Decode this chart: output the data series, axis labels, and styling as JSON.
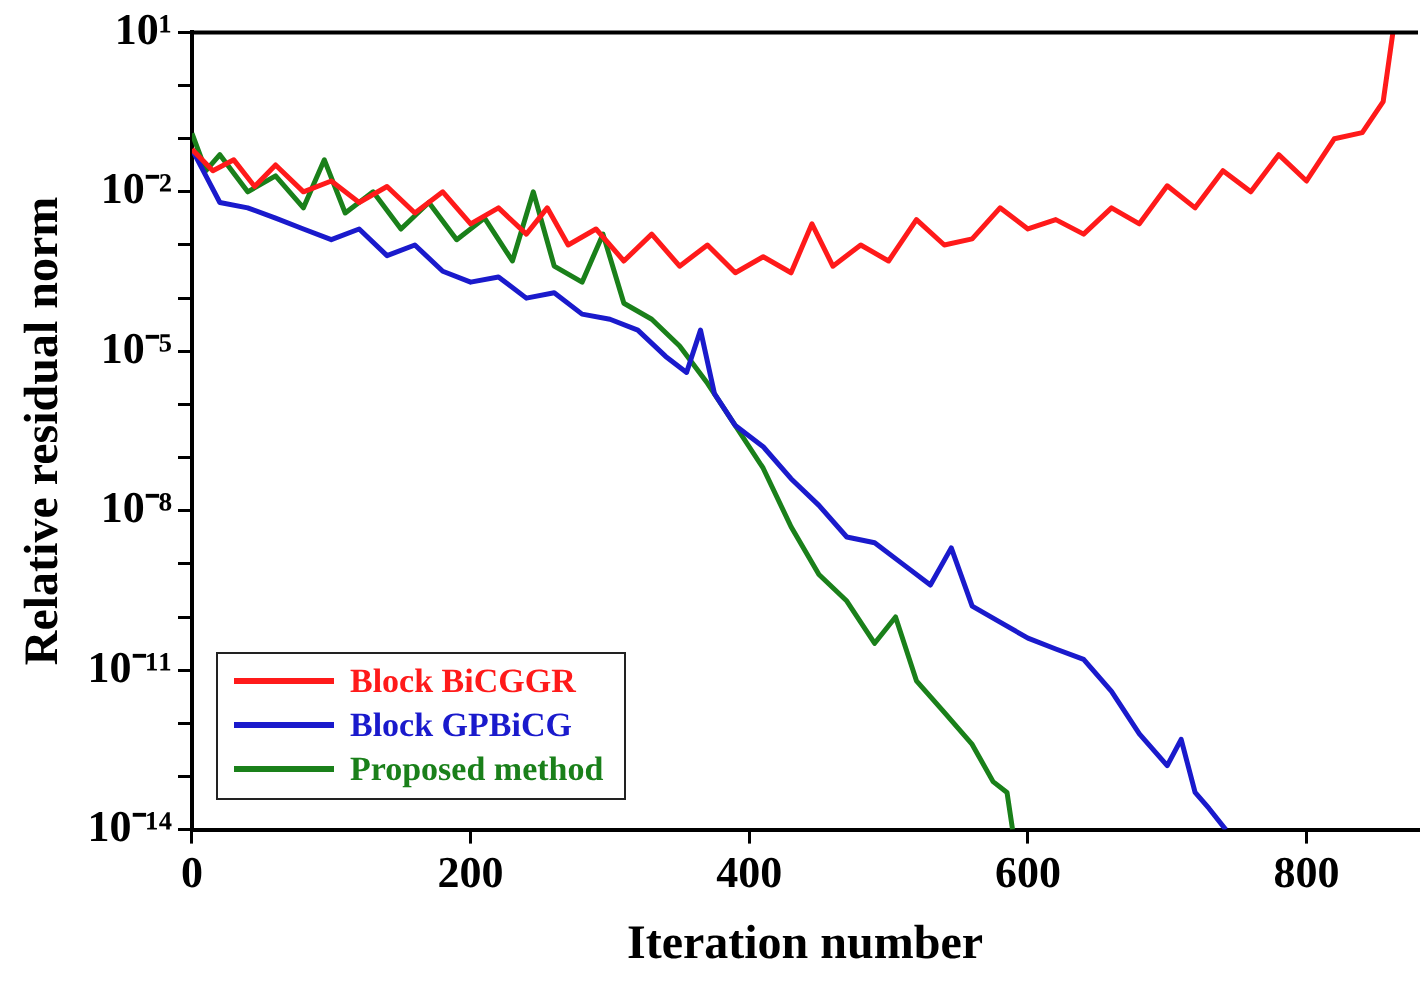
{
  "chart_data": {
    "type": "line",
    "xlabel": "Iteration number",
    "ylabel": "Relative residual norm",
    "log": "y",
    "grid": false,
    "legend": "bottom left",
    "marker": "none",
    "line_style": "solid",
    "xlim": [
      0,
      880
    ],
    "xticks": [
      0,
      200,
      400,
      600,
      800
    ],
    "ylim": [
      1e-14,
      10
    ],
    "yticks": [
      {
        "value": 10,
        "label": "10¹"
      },
      {
        "value": 1,
        "label": null
      },
      {
        "value": 0.1,
        "label": null
      },
      {
        "value": 0.01,
        "label": "10⁻²"
      },
      {
        "value": 0.001,
        "label": null
      },
      {
        "value": 0.0001,
        "label": null
      },
      {
        "value": 1e-05,
        "label": "10⁻⁵"
      },
      {
        "value": 1e-06,
        "label": null
      },
      {
        "value": 1e-07,
        "label": null
      },
      {
        "value": 1e-08,
        "label": "10⁻⁸"
      },
      {
        "value": 1e-09,
        "label": null
      },
      {
        "value": 1e-10,
        "label": null
      },
      {
        "value": 1e-11,
        "label": "10⁻¹¹"
      },
      {
        "value": 1e-12,
        "label": null
      },
      {
        "value": 1e-13,
        "label": null
      },
      {
        "value": 1e-14,
        "label": "10⁻¹⁴"
      }
    ],
    "series": [
      {
        "name": "Block BiCGGR",
        "color": "#ff1a1a",
        "x": [
          0,
          15,
          30,
          45,
          60,
          80,
          100,
          120,
          140,
          160,
          180,
          200,
          220,
          240,
          255,
          270,
          290,
          310,
          330,
          350,
          370,
          390,
          410,
          430,
          445,
          460,
          480,
          500,
          520,
          540,
          560,
          580,
          600,
          620,
          640,
          660,
          680,
          700,
          720,
          740,
          760,
          780,
          800,
          820,
          840,
          855,
          862
        ],
        "values": [
          0.063,
          0.025,
          0.04,
          0.0126,
          0.032,
          0.01,
          0.016,
          0.0063,
          0.0126,
          0.004,
          0.01,
          0.0025,
          0.005,
          0.0016,
          0.005,
          0.001,
          0.002,
          0.0005,
          0.0016,
          0.0004,
          0.001,
          0.0003,
          0.0006,
          0.0003,
          0.0025,
          0.0004,
          0.001,
          0.0005,
          0.003,
          0.001,
          0.0013,
          0.005,
          0.002,
          0.003,
          0.0016,
          0.005,
          0.0025,
          0.013,
          0.005,
          0.025,
          0.01,
          0.05,
          0.016,
          0.1,
          0.13,
          0.5,
          10
        ]
      },
      {
        "name": "Block GPBiCG",
        "color": "#1a1acc",
        "x": [
          0,
          10,
          20,
          40,
          60,
          80,
          100,
          120,
          140,
          160,
          180,
          200,
          220,
          240,
          260,
          280,
          300,
          320,
          340,
          355,
          365,
          375,
          390,
          410,
          430,
          450,
          470,
          490,
          510,
          530,
          545,
          560,
          580,
          600,
          620,
          640,
          660,
          680,
          700,
          710,
          720,
          730,
          742
        ],
        "values": [
          0.063,
          0.02,
          0.0063,
          0.005,
          0.0032,
          0.002,
          0.00126,
          0.002,
          0.00063,
          0.001,
          0.00032,
          0.0002,
          0.00025,
          0.0001,
          0.000126,
          5e-05,
          4e-05,
          2.5e-05,
          8e-06,
          4e-06,
          2.5e-05,
          1.6e-06,
          4e-07,
          1.6e-07,
          4e-08,
          1.26e-08,
          3.2e-09,
          2.5e-09,
          1e-09,
          4e-10,
          2e-09,
          1.6e-10,
          8e-11,
          4e-11,
          2.5e-11,
          1.6e-11,
          4e-12,
          6.3e-13,
          1.6e-13,
          5e-13,
          5e-14,
          2.5e-14,
          1e-14
        ]
      },
      {
        "name": "Proposed method",
        "color": "#1a801a",
        "x": [
          0,
          10,
          20,
          40,
          60,
          80,
          95,
          110,
          130,
          150,
          170,
          190,
          210,
          230,
          245,
          260,
          280,
          295,
          310,
          330,
          350,
          370,
          390,
          410,
          430,
          450,
          470,
          490,
          505,
          520,
          540,
          560,
          575,
          585,
          589
        ],
        "values": [
          0.126,
          0.025,
          0.05,
          0.01,
          0.02,
          0.005,
          0.04,
          0.004,
          0.01,
          0.002,
          0.0063,
          0.00126,
          0.0032,
          0.0005,
          0.01,
          0.0004,
          0.0002,
          0.0016,
          8e-05,
          4e-05,
          1.26e-05,
          2.5e-06,
          4e-07,
          6.3e-08,
          5e-09,
          6.3e-10,
          2e-10,
          3.2e-11,
          1e-10,
          6.3e-12,
          1.6e-12,
          4e-13,
          8e-14,
          5e-14,
          1e-14
        ]
      }
    ]
  }
}
